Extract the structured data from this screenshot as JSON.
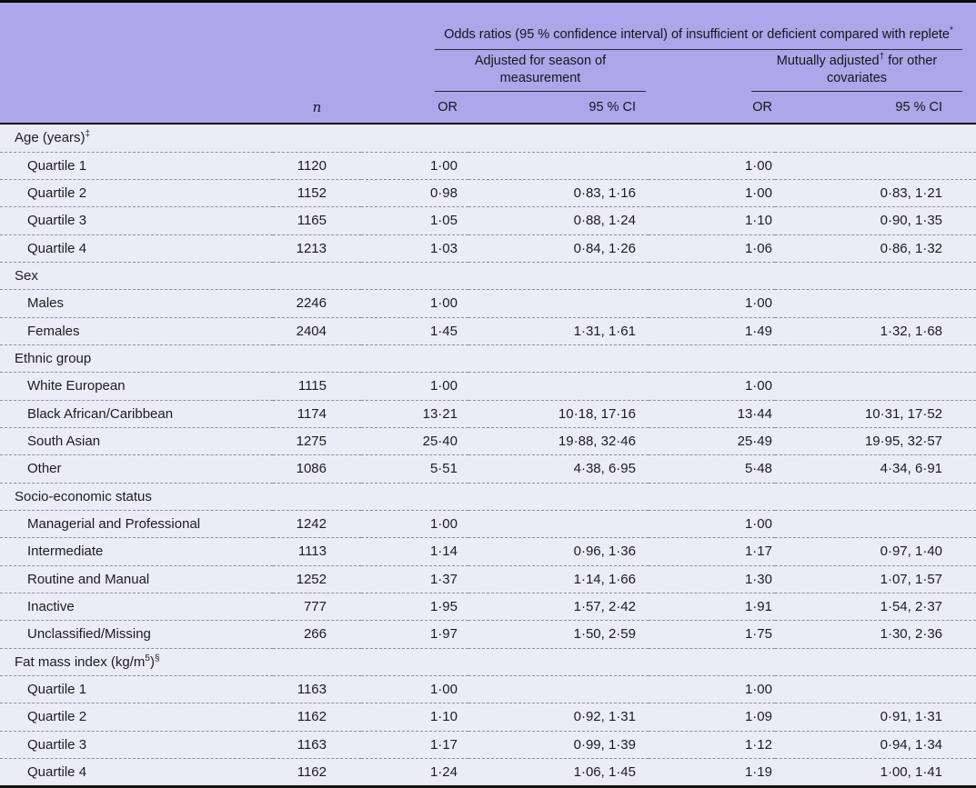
{
  "colors": {
    "header_bg": "#aba7ea",
    "body_bg": "#ecebf8",
    "top_rule": "#0a0a0a",
    "bottom_rule": "#141414",
    "dash_separator": "#8f8f98",
    "text": "#1d1d1f"
  },
  "table": {
    "span_header": "Odds ratios (95 % confidence interval) of insufficient or deficient compared with replete^{*}",
    "group_headers": [
      "Adjusted for season of measurement",
      "Mutually adjusted^{†} for other covariates"
    ],
    "column_headers": {
      "n": "n",
      "or": "OR",
      "ci": "95 % CI"
    },
    "sections": [
      {
        "label": "Age (years)^{‡}",
        "rows": [
          {
            "label": "Quartile 1",
            "n": "1120",
            "or1": "1·00",
            "ci1": "",
            "or2": "1·00",
            "ci2": ""
          },
          {
            "label": "Quartile 2",
            "n": "1152",
            "or1": "0·98",
            "ci1": "0·83, 1·16",
            "or2": "1·00",
            "ci2": "0·83, 1·21"
          },
          {
            "label": "Quartile 3",
            "n": "1165",
            "or1": "1·05",
            "ci1": "0·88, 1·24",
            "or2": "1·10",
            "ci2": "0·90, 1·35"
          },
          {
            "label": "Quartile 4",
            "n": "1213",
            "or1": "1·03",
            "ci1": "0·84, 1·26",
            "or2": "1·06",
            "ci2": "0·86, 1·32"
          }
        ]
      },
      {
        "label": "Sex",
        "rows": [
          {
            "label": "Males",
            "n": "2246",
            "or1": "1·00",
            "ci1": "",
            "or2": "1·00",
            "ci2": ""
          },
          {
            "label": "Females",
            "n": "2404",
            "or1": "1·45",
            "ci1": "1·31, 1·61",
            "or2": "1·49",
            "ci2": "1·32, 1·68"
          }
        ]
      },
      {
        "label": "Ethnic group",
        "rows": [
          {
            "label": "White European",
            "n": "1115",
            "or1": "1·00",
            "ci1": "",
            "or2": "1·00",
            "ci2": ""
          },
          {
            "label": "Black African/Caribbean",
            "n": "1174",
            "or1": "13·21",
            "ci1": "10·18, 17·16",
            "or2": "13·44",
            "ci2": "10·31, 17·52"
          },
          {
            "label": "South Asian",
            "n": "1275",
            "or1": "25·40",
            "ci1": "19·88, 32·46",
            "or2": "25·49",
            "ci2": "19·95, 32·57"
          },
          {
            "label": "Other",
            "n": "1086",
            "or1": "5·51",
            "ci1": "4·38, 6·95",
            "or2": "5·48",
            "ci2": "4·34, 6·91"
          }
        ]
      },
      {
        "label": "Socio-economic status",
        "rows": [
          {
            "label": "Managerial and Professional",
            "n": "1242",
            "or1": "1·00",
            "ci1": "",
            "or2": "1·00",
            "ci2": ""
          },
          {
            "label": "Intermediate",
            "n": "1113",
            "or1": "1·14",
            "ci1": "0·96, 1·36",
            "or2": "1·17",
            "ci2": "0·97, 1·40"
          },
          {
            "label": "Routine and Manual",
            "n": "1252",
            "or1": "1·37",
            "ci1": "1·14, 1·66",
            "or2": "1·30",
            "ci2": "1·07, 1·57"
          },
          {
            "label": "Inactive",
            "n": "777",
            "or1": "1·95",
            "ci1": "1·57, 2·42",
            "or2": "1·91",
            "ci2": "1·54, 2·37"
          },
          {
            "label": "Unclassified/Missing",
            "n": "266",
            "or1": "1·97",
            "ci1": "1·50, 2·59",
            "or2": "1·75",
            "ci2": "1·30, 2·36"
          }
        ]
      },
      {
        "label": "Fat mass index (kg/m^{5})^{§}",
        "rows": [
          {
            "label": "Quartile 1",
            "n": "1163",
            "or1": "1·00",
            "ci1": "",
            "or2": "1·00",
            "ci2": ""
          },
          {
            "label": "Quartile 2",
            "n": "1162",
            "or1": "1·10",
            "ci1": "0·92, 1·31",
            "or2": "1·09",
            "ci2": "0·91, 1·31"
          },
          {
            "label": "Quartile 3",
            "n": "1163",
            "or1": "1·17",
            "ci1": "0·99, 1·39",
            "or2": "1·12",
            "ci2": "0·94, 1·34"
          },
          {
            "label": "Quartile 4",
            "n": "1162",
            "or1": "1·24",
            "ci1": "1·06, 1·45",
            "or2": "1·19",
            "ci2": "1·00, 1·41"
          }
        ]
      }
    ]
  }
}
